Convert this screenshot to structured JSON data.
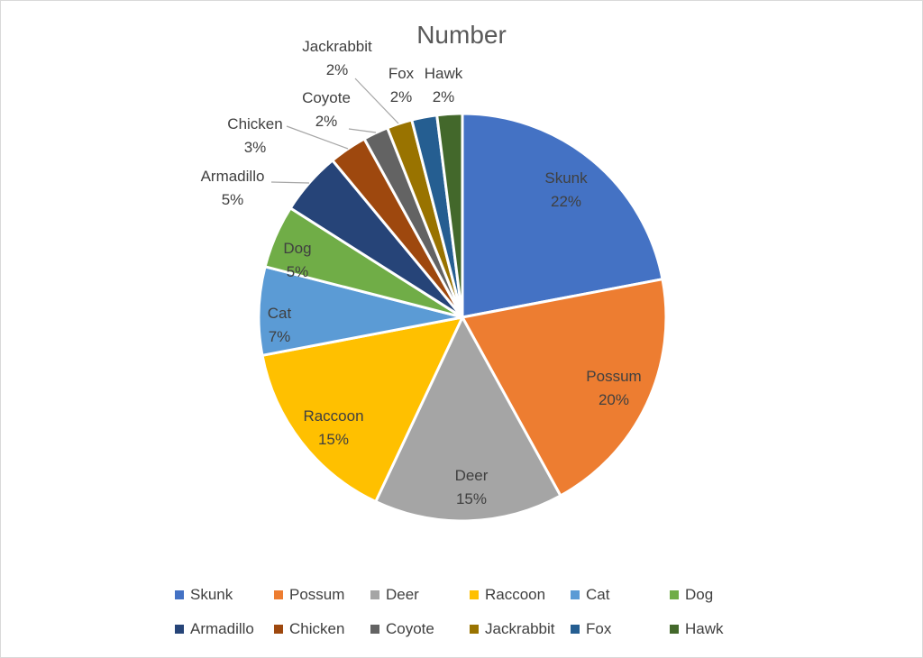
{
  "chart_data": {
    "type": "pie",
    "title": "Number",
    "slices": [
      {
        "label": "Skunk",
        "pct": 22,
        "pct_label": "22%",
        "color": "#4472C4"
      },
      {
        "label": "Possum",
        "pct": 20,
        "pct_label": "20%",
        "color": "#ED7D31"
      },
      {
        "label": "Deer",
        "pct": 15,
        "pct_label": "15%",
        "color": "#A5A5A5"
      },
      {
        "label": "Raccoon",
        "pct": 15,
        "pct_label": "15%",
        "color": "#FFC000"
      },
      {
        "label": "Cat",
        "pct": 7,
        "pct_label": "7%",
        "color": "#5B9BD5"
      },
      {
        "label": "Dog",
        "pct": 5,
        "pct_label": "5%",
        "color": "#70AD47"
      },
      {
        "label": "Armadillo",
        "pct": 5,
        "pct_label": "5%",
        "color": "#264478"
      },
      {
        "label": "Chicken",
        "pct": 3,
        "pct_label": "3%",
        "color": "#9E480E"
      },
      {
        "label": "Coyote",
        "pct": 2,
        "pct_label": "2%",
        "color": "#636363"
      },
      {
        "label": "Jackrabbit",
        "pct": 2,
        "pct_label": "2%",
        "color": "#997300"
      },
      {
        "label": "Fox",
        "pct": 2,
        "pct_label": "2%",
        "color": "#255E91"
      },
      {
        "label": "Hawk",
        "pct": 2,
        "pct_label": "2%",
        "color": "#43682B"
      }
    ],
    "start_angle_deg": 0,
    "direction": "clockwise",
    "slice_border_color": "#FFFFFF",
    "leader_line_color": "#A6A6A6",
    "label_text_color": "#404040",
    "title_color": "#595959",
    "labels_inside": [
      "Skunk",
      "Possum",
      "Deer",
      "Raccoon",
      "Cat",
      "Dog"
    ],
    "labels_outside": [
      "Armadillo",
      "Chicken",
      "Coyote",
      "Jackrabbit",
      "Fox",
      "Hawk"
    ],
    "legend_position": "bottom",
    "legend_rows": [
      [
        "Skunk",
        "Possum",
        "Deer",
        "Raccoon",
        "Cat",
        "Dog"
      ],
      [
        "Armadillo",
        "Chicken",
        "Coyote",
        "Jackrabbit",
        "Fox",
        "Hawk"
      ]
    ]
  }
}
